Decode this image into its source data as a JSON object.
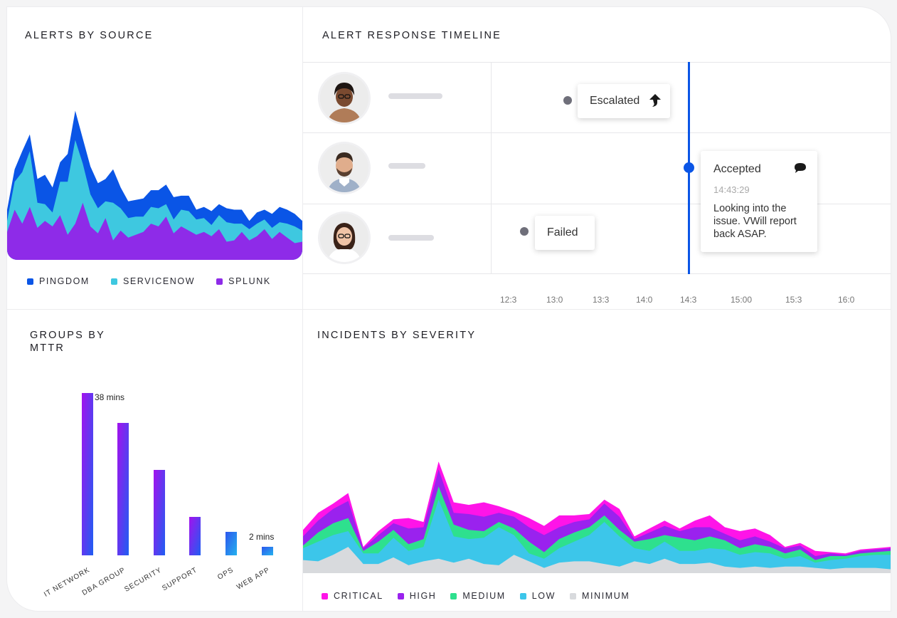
{
  "panels": {
    "alerts_by_source": {
      "title": "ALERTS BY SOURCE",
      "legend": [
        {
          "label": "PINGDOM",
          "color": "#0a55e6"
        },
        {
          "label": "SERVICENOW",
          "color": "#3ec8e0"
        },
        {
          "label": "SPLUNK",
          "color": "#8e2be8"
        }
      ]
    },
    "timeline": {
      "title": "ALERT RESPONSE TIMELINE",
      "events": [
        {
          "label": "Escalated",
          "icon": "arrow-up-icon"
        },
        {
          "label": "Accepted",
          "time": "14:43:29",
          "message": "Looking into the issue. VWill report back ASAP.",
          "icon": "comment-icon"
        },
        {
          "label": "Failed"
        }
      ],
      "ticks": [
        "12:3",
        "13:0",
        "13:3",
        "14:0",
        "14:3",
        "15:00",
        "15:3",
        "16:0"
      ],
      "accent": "#0a55e6"
    },
    "groups_by_mttr": {
      "title_line1": "GROUPS BY",
      "title_line2": "MTTR"
    },
    "incidents_by_severity": {
      "title": "INCIDENTS BY SEVERITY",
      "legend": [
        {
          "label": "CRITICAL",
          "color": "#ff14e8"
        },
        {
          "label": "HIGH",
          "color": "#9a22ee"
        },
        {
          "label": "MEDIUM",
          "color": "#2ee08e"
        },
        {
          "label": "LOW",
          "color": "#3cc6ea"
        },
        {
          "label": "MINIMUM",
          "color": "#d8dadd"
        }
      ]
    }
  },
  "chart_data": [
    {
      "type": "area",
      "name": "alerts_by_source",
      "stacked": true,
      "x": [
        0,
        1,
        2,
        3,
        4,
        5,
        6,
        7,
        8,
        9,
        10,
        11,
        12,
        13,
        14,
        15,
        16,
        17,
        18,
        19,
        20,
        21,
        22,
        23,
        24,
        25,
        26,
        27,
        28,
        29,
        30,
        31,
        32,
        33,
        34,
        35,
        36,
        37,
        38,
        39
      ],
      "series": [
        {
          "name": "SPLUNK",
          "values": [
            20,
            36,
            26,
            38,
            23,
            28,
            24,
            32,
            18,
            26,
            41,
            24,
            19,
            30,
            14,
            21,
            16,
            18,
            20,
            26,
            24,
            31,
            19,
            24,
            21,
            18,
            20,
            17,
            22,
            13,
            14,
            20,
            14,
            17,
            22,
            15,
            20,
            16,
            12,
            13
          ]
        },
        {
          "name": "SERVICENOW",
          "values": [
            8,
            20,
            37,
            40,
            18,
            12,
            10,
            24,
            38,
            60,
            28,
            23,
            18,
            12,
            27,
            16,
            14,
            13,
            11,
            12,
            13,
            9,
            10,
            12,
            14,
            11,
            10,
            8,
            10,
            14,
            12,
            6,
            8,
            9,
            7,
            8,
            7,
            10,
            12,
            8
          ]
        },
        {
          "name": "PINGDOM",
          "values": [
            8,
            9,
            15,
            12,
            17,
            21,
            18,
            14,
            20,
            21,
            18,
            20,
            18,
            16,
            24,
            15,
            12,
            12,
            13,
            12,
            13,
            14,
            16,
            10,
            11,
            7,
            8,
            10,
            8,
            10,
            10,
            10,
            6,
            8,
            7,
            10,
            11,
            10,
            9,
            7
          ]
        }
      ]
    },
    {
      "type": "bar",
      "name": "groups_by_mttr",
      "categories": [
        "IT NETWORK",
        "DBA GROUP",
        "SECURITY",
        "SUPPORT",
        "OPS",
        "WEB APP"
      ],
      "values": [
        38,
        31,
        20,
        9,
        5.5,
        2
      ],
      "value_labels": [
        "38 mins",
        "",
        "",
        "",
        "",
        "2 mins"
      ]
    },
    {
      "type": "area",
      "name": "incidents_by_severity",
      "stacked": true,
      "x": [
        0,
        1,
        2,
        3,
        4,
        5,
        6,
        7,
        8,
        9,
        10,
        11,
        12,
        13,
        14,
        15,
        16,
        17,
        18,
        19,
        20,
        21,
        22,
        23,
        24,
        25,
        26,
        27,
        28,
        29,
        30,
        31,
        32,
        33,
        34,
        35,
        36,
        37,
        38,
        39
      ],
      "series": [
        {
          "name": "MINIMUM",
          "values": [
            20,
            18,
            28,
            40,
            14,
            14,
            24,
            12,
            18,
            22,
            16,
            22,
            14,
            12,
            28,
            18,
            8,
            16,
            18,
            18,
            14,
            10,
            18,
            14,
            22,
            14,
            14,
            16,
            10,
            8,
            10,
            8,
            10,
            10,
            8,
            6,
            8,
            8,
            8,
            6
          ]
        },
        {
          "name": "LOW",
          "values": [
            18,
            30,
            30,
            24,
            16,
            16,
            30,
            22,
            22,
            90,
            40,
            30,
            40,
            58,
            30,
            12,
            14,
            22,
            30,
            40,
            64,
            46,
            20,
            20,
            26,
            20,
            20,
            22,
            26,
            20,
            22,
            22,
            12,
            16,
            8,
            14,
            14,
            18,
            20,
            22
          ]
        },
        {
          "name": "MEDIUM",
          "values": [
            4,
            14,
            18,
            20,
            4,
            18,
            12,
            10,
            12,
            20,
            18,
            14,
            10,
            8,
            10,
            18,
            10,
            14,
            14,
            12,
            10,
            10,
            10,
            18,
            10,
            20,
            16,
            18,
            14,
            10,
            12,
            10,
            8,
            10,
            4,
            6,
            4,
            4,
            4,
            6
          ]
        },
        {
          "name": "HIGH",
          "values": [
            14,
            18,
            22,
            26,
            4,
            10,
            10,
            24,
            18,
            26,
            18,
            24,
            22,
            14,
            18,
            22,
            26,
            18,
            16,
            12,
            18,
            20,
            4,
            10,
            14,
            10,
            20,
            14,
            10,
            12,
            12,
            8,
            8,
            6,
            6,
            4,
            2,
            4,
            4,
            4
          ]
        },
        {
          "name": "CRITICAL",
          "values": [
            10,
            12,
            8,
            12,
            2,
            6,
            6,
            16,
            8,
            12,
            16,
            14,
            22,
            10,
            8,
            14,
            14,
            18,
            10,
            8,
            6,
            12,
            4,
            6,
            8,
            4,
            10,
            18,
            10,
            14,
            12,
            10,
            2,
            4,
            8,
            2,
            2,
            2,
            2,
            2
          ]
        }
      ]
    }
  ]
}
